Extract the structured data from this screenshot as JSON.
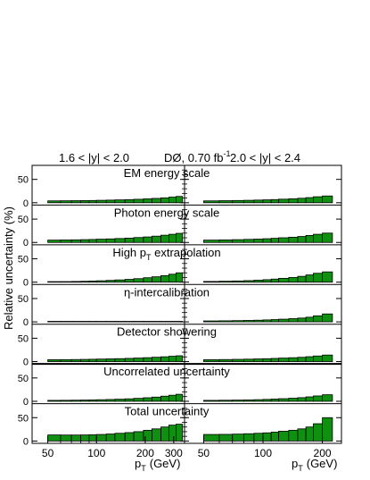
{
  "figure": {
    "left_range_label": "1.6 < |y| < 2.0",
    "experiment": "DØ, 0.70 fb",
    "lumi_superscript": "-1",
    "right_range_label": "2.0 < |y| < 2.4",
    "ylabel": "Relative uncertainty (%)",
    "xlabel_left": "p",
    "xlabel_left_sub": "T",
    "xlabel_left_unit": "(GeV)",
    "xlabel_right": "p",
    "xlabel_right_sub": "T",
    "xlabel_right_unit": "(GeV)",
    "fill_color": "#109010",
    "edge_color": "#000000"
  },
  "chart_data": {
    "type": "bar",
    "title": "",
    "ylim": [
      -5,
      80
    ],
    "y_ticks": [
      0,
      50
    ],
    "x_scale": "log",
    "left": {
      "range": "1.6 < |y| < 2.0",
      "xlim": [
        40,
        350
      ],
      "x_ticks": [
        50,
        100,
        200,
        300
      ],
      "bin_edges": [
        50,
        60,
        70,
        80,
        90,
        100,
        115,
        130,
        150,
        170,
        195,
        220,
        250,
        280,
        310,
        340
      ]
    },
    "right": {
      "range": "2.0 < |y| < 2.4",
      "xlim": [
        40,
        250
      ],
      "x_ticks": [
        50,
        100,
        200
      ],
      "bin_edges": [
        50,
        60,
        70,
        80,
        90,
        100,
        110,
        120,
        135,
        150,
        165,
        180,
        200,
        225
      ]
    },
    "panels": [
      {
        "title": "EM energy scale",
        "left_values": [
          4,
          4.2,
          4.4,
          4.6,
          4.8,
          5.2,
          5.6,
          6.1,
          6.7,
          7.4,
          8.3,
          9.3,
          10.5,
          12,
          13.5
        ],
        "right_values": [
          4,
          4.4,
          4.8,
          5.2,
          5.7,
          6.2,
          6.8,
          7.6,
          8.5,
          9.6,
          11,
          12.8,
          14.5
        ]
      },
      {
        "title": "Photon energy scale",
        "left_values": [
          5,
          5.3,
          5.6,
          6,
          6.4,
          7,
          7.6,
          8.4,
          9.3,
          10.5,
          11.8,
          13.5,
          15.5,
          17.5,
          19.5
        ],
        "right_values": [
          5,
          5.5,
          6,
          6.6,
          7.2,
          8,
          8.9,
          10,
          11.2,
          12.8,
          15,
          17.5,
          20
        ]
      },
      {
        "title": "High p",
        "title_sub": "T",
        "title_suffix": " extrapolation",
        "left_values": [
          1,
          1.2,
          1.5,
          1.9,
          2.4,
          3,
          3.8,
          4.8,
          6,
          7.5,
          9.5,
          11.5,
          14,
          17,
          20
        ],
        "right_values": [
          1.5,
          2,
          2.6,
          3.3,
          4.2,
          5.3,
          6.6,
          8.2,
          10,
          12.5,
          15.5,
          19,
          22
        ]
      },
      {
        "title": "η-intercalibration",
        "left_values": [
          0.3,
          0.3,
          0.3,
          0.3,
          0.3,
          0.3,
          0.3,
          0.3,
          0.3,
          0.3,
          0.3,
          0.3,
          0.3,
          0.3,
          0.3
        ],
        "right_values": [
          2,
          2.3,
          2.7,
          3.1,
          3.6,
          4.2,
          4.9,
          5.8,
          6.9,
          8.2,
          10,
          13,
          17
        ]
      },
      {
        "title": "Detector showering",
        "left_values": [
          4,
          4.2,
          4.4,
          4.7,
          5,
          5.4,
          5.8,
          6.3,
          6.9,
          7.6,
          8.4,
          9.3,
          10.3,
          11.4,
          12.5
        ],
        "right_values": [
          4,
          4.4,
          4.8,
          5.2,
          5.7,
          6.2,
          6.8,
          7.5,
          8.3,
          9.2,
          10.5,
          12,
          14
        ]
      },
      {
        "title": "Uncorrelated uncertainty",
        "left_values": [
          2,
          2.2,
          2.4,
          2.7,
          3,
          3.4,
          3.9,
          4.5,
          5.3,
          6.3,
          7.6,
          9,
          11,
          13,
          15
        ],
        "right_values": [
          2,
          2.3,
          2.6,
          3,
          3.5,
          4.1,
          4.8,
          5.6,
          6.6,
          7.8,
          9.5,
          11.5,
          14
        ]
      },
      {
        "title": "Total uncertainty",
        "left_values": [
          13,
          12.8,
          12.8,
          13,
          13.4,
          14,
          15,
          16.5,
          18,
          20,
          23,
          26,
          30,
          34,
          36
        ],
        "right_values": [
          14,
          14.2,
          14.8,
          15.6,
          16.5,
          17.5,
          19,
          21,
          23,
          26,
          30,
          37,
          50
        ]
      }
    ]
  }
}
